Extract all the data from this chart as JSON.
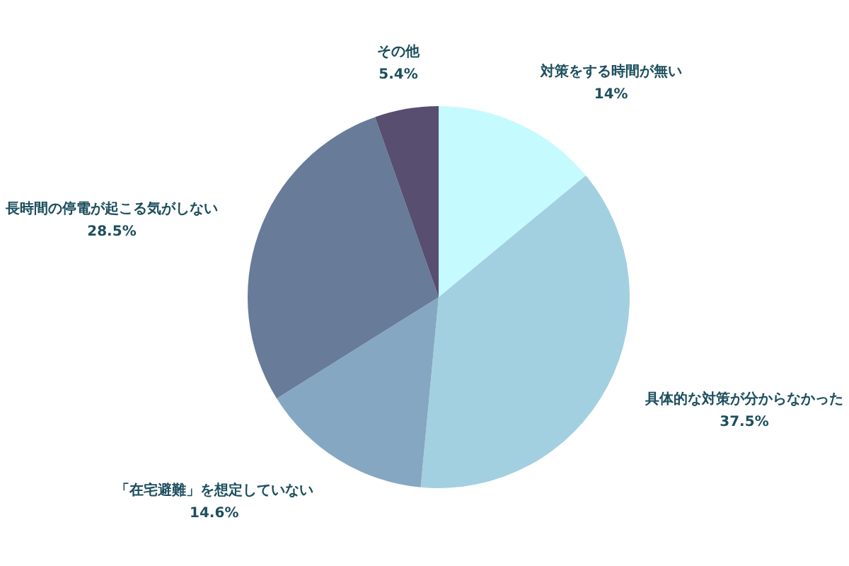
{
  "chart_data": {
    "type": "pie",
    "categories": [
      "対策をする時間が無い",
      "具体的な対策が分からなかった",
      "「在宅避難」を想定していない",
      "長時間の停電が起こる気がしない",
      "その他"
    ],
    "values": [
      14,
      37.5,
      14.6,
      28.5,
      5.4
    ],
    "value_labels": [
      "14%",
      "37.5%",
      "14.6%",
      "28.5%",
      "5.4%"
    ],
    "colors": [
      "#c5fbff",
      "#a3d0e0",
      "#86a7c1",
      "#687b99",
      "#574e70"
    ]
  }
}
